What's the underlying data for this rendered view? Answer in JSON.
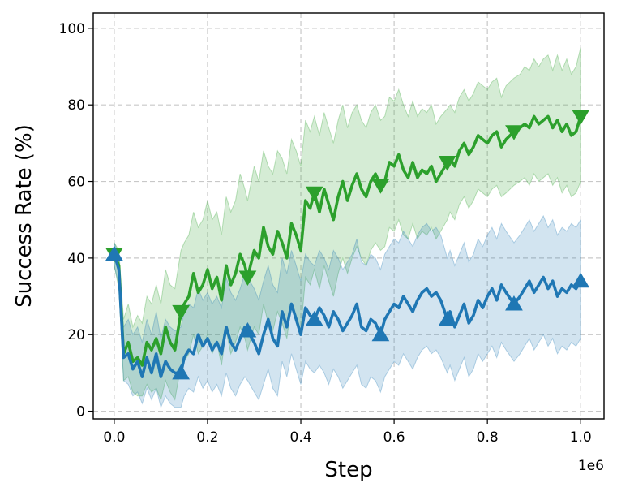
{
  "chart_data": {
    "type": "line",
    "title": "",
    "xlabel": "Step",
    "ylabel": "Success Rate (%)",
    "x_offset_label": "1e6",
    "xlim": [
      -0.045,
      1.05
    ],
    "ylim": [
      -2,
      104
    ],
    "grid": true,
    "legend": "none",
    "x_ticks": [
      0.0,
      0.2,
      0.4,
      0.6,
      0.8,
      1.0
    ],
    "x_tick_labels": [
      "0.0",
      "0.2",
      "0.4",
      "0.6",
      "0.8",
      "1.0"
    ],
    "y_ticks": [
      0,
      20,
      40,
      60,
      80,
      100
    ],
    "y_tick_labels": [
      "0",
      "20",
      "40",
      "60",
      "80",
      "100"
    ],
    "series": [
      {
        "color": "#2ca02c",
        "marker": "triangle-down",
        "markers_x": [
          0.0,
          0.143,
          0.286,
          0.429,
          0.571,
          0.714,
          0.857,
          1.0
        ],
        "x": [
          0.0,
          0.01,
          0.02,
          0.03,
          0.04,
          0.05,
          0.06,
          0.07,
          0.08,
          0.09,
          0.1,
          0.11,
          0.12,
          0.13,
          0.143,
          0.15,
          0.16,
          0.17,
          0.18,
          0.19,
          0.2,
          0.21,
          0.22,
          0.23,
          0.24,
          0.25,
          0.26,
          0.27,
          0.28,
          0.286,
          0.3,
          0.31,
          0.32,
          0.33,
          0.34,
          0.35,
          0.36,
          0.37,
          0.38,
          0.39,
          0.4,
          0.41,
          0.42,
          0.429,
          0.44,
          0.45,
          0.46,
          0.47,
          0.48,
          0.49,
          0.5,
          0.51,
          0.52,
          0.53,
          0.54,
          0.55,
          0.56,
          0.571,
          0.58,
          0.59,
          0.6,
          0.61,
          0.62,
          0.63,
          0.64,
          0.65,
          0.66,
          0.67,
          0.68,
          0.69,
          0.7,
          0.714,
          0.72,
          0.73,
          0.74,
          0.75,
          0.76,
          0.77,
          0.78,
          0.79,
          0.8,
          0.81,
          0.82,
          0.83,
          0.84,
          0.857,
          0.87,
          0.88,
          0.89,
          0.9,
          0.91,
          0.92,
          0.93,
          0.94,
          0.95,
          0.96,
          0.97,
          0.98,
          0.99,
          1.0
        ],
        "y": [
          41,
          38,
          15,
          18,
          13,
          14,
          12,
          18,
          16,
          19,
          15,
          22,
          18,
          16,
          26,
          28,
          30,
          36,
          31,
          33,
          37,
          32,
          35,
          29,
          38,
          33,
          36,
          41,
          38,
          35,
          42,
          40,
          48,
          43,
          41,
          47,
          44,
          40,
          49,
          46,
          42,
          55,
          53,
          57,
          52,
          58,
          54,
          50,
          56,
          60,
          55,
          59,
          62,
          58,
          56,
          60,
          62,
          59,
          60,
          65,
          64,
          67,
          63,
          61,
          65,
          61,
          63,
          62,
          64,
          60,
          62,
          65,
          66,
          64,
          68,
          70,
          67,
          69,
          72,
          71,
          70,
          72,
          73,
          69,
          71,
          73,
          74,
          75,
          74,
          77,
          75,
          76,
          77,
          74,
          76,
          73,
          75,
          72,
          73,
          77
        ],
        "upper": [
          44,
          42,
          24,
          28,
          22,
          25,
          23,
          30,
          28,
          33,
          28,
          37,
          33,
          32,
          42,
          44,
          46,
          52,
          48,
          50,
          55,
          50,
          52,
          46,
          56,
          52,
          55,
          62,
          58,
          55,
          64,
          60,
          68,
          64,
          62,
          68,
          66,
          62,
          71,
          68,
          64,
          76,
          73,
          77,
          72,
          78,
          74,
          70,
          76,
          80,
          74,
          78,
          80,
          76,
          74,
          78,
          80,
          76,
          77,
          82,
          81,
          84,
          80,
          77,
          81,
          77,
          79,
          78,
          80,
          75,
          77,
          79,
          80,
          78,
          82,
          84,
          81,
          83,
          86,
          85,
          84,
          86,
          87,
          82,
          85,
          87,
          88,
          90,
          89,
          92,
          90,
          92,
          93,
          89,
          93,
          89,
          92,
          88,
          90,
          95
        ],
        "lower": [
          38,
          32,
          8,
          9,
          5,
          4,
          4,
          7,
          5,
          6,
          3,
          8,
          5,
          3,
          12,
          13,
          15,
          20,
          15,
          17,
          20,
          15,
          18,
          12,
          21,
          15,
          18,
          22,
          19,
          16,
          22,
          20,
          28,
          23,
          21,
          26,
          23,
          19,
          28,
          25,
          21,
          35,
          33,
          37,
          32,
          38,
          34,
          30,
          36,
          40,
          36,
          40,
          43,
          40,
          38,
          42,
          44,
          42,
          43,
          48,
          47,
          50,
          46,
          45,
          49,
          45,
          47,
          46,
          48,
          45,
          47,
          50,
          52,
          50,
          54,
          56,
          53,
          55,
          58,
          57,
          56,
          58,
          59,
          56,
          57,
          59,
          60,
          61,
          59,
          62,
          60,
          61,
          62,
          59,
          61,
          57,
          59,
          56,
          57,
          60
        ]
      },
      {
        "color": "#1f77b4",
        "marker": "triangle-up",
        "markers_x": [
          0.0,
          0.143,
          0.286,
          0.429,
          0.571,
          0.714,
          0.857,
          1.0
        ],
        "x": [
          0.0,
          0.01,
          0.02,
          0.03,
          0.04,
          0.05,
          0.06,
          0.07,
          0.08,
          0.09,
          0.1,
          0.11,
          0.12,
          0.13,
          0.143,
          0.15,
          0.16,
          0.17,
          0.18,
          0.19,
          0.2,
          0.21,
          0.22,
          0.23,
          0.24,
          0.25,
          0.26,
          0.27,
          0.28,
          0.286,
          0.3,
          0.31,
          0.32,
          0.33,
          0.34,
          0.35,
          0.36,
          0.37,
          0.38,
          0.39,
          0.4,
          0.41,
          0.42,
          0.429,
          0.44,
          0.45,
          0.46,
          0.47,
          0.48,
          0.49,
          0.5,
          0.51,
          0.52,
          0.53,
          0.54,
          0.55,
          0.56,
          0.571,
          0.58,
          0.59,
          0.6,
          0.61,
          0.62,
          0.63,
          0.64,
          0.65,
          0.66,
          0.67,
          0.68,
          0.69,
          0.7,
          0.714,
          0.72,
          0.73,
          0.74,
          0.75,
          0.76,
          0.77,
          0.78,
          0.79,
          0.8,
          0.81,
          0.82,
          0.83,
          0.84,
          0.857,
          0.87,
          0.88,
          0.89,
          0.9,
          0.91,
          0.92,
          0.93,
          0.94,
          0.95,
          0.96,
          0.97,
          0.98,
          0.99,
          1.0
        ],
        "y": [
          41,
          37,
          14,
          15,
          11,
          13,
          9,
          14,
          10,
          15,
          9,
          13,
          11,
          10,
          10,
          14,
          16,
          15,
          20,
          17,
          19,
          16,
          18,
          15,
          22,
          18,
          16,
          19,
          22,
          21,
          18,
          15,
          20,
          24,
          19,
          17,
          26,
          22,
          28,
          24,
          20,
          27,
          25,
          24,
          27,
          25,
          22,
          26,
          24,
          21,
          23,
          25,
          28,
          22,
          21,
          24,
          23,
          20,
          24,
          26,
          28,
          27,
          30,
          28,
          26,
          29,
          31,
          32,
          30,
          31,
          29,
          24,
          26,
          22,
          25,
          28,
          23,
          25,
          29,
          27,
          30,
          32,
          29,
          33,
          31,
          28,
          30,
          32,
          34,
          31,
          33,
          35,
          32,
          34,
          30,
          32,
          31,
          33,
          32,
          34
        ],
        "upper": [
          44,
          41,
          22,
          24,
          20,
          22,
          18,
          24,
          20,
          26,
          19,
          24,
          22,
          21,
          22,
          26,
          28,
          27,
          32,
          29,
          31,
          28,
          30,
          27,
          35,
          31,
          29,
          32,
          36,
          35,
          32,
          29,
          34,
          38,
          33,
          31,
          40,
          36,
          42,
          38,
          34,
          41,
          39,
          38,
          42,
          40,
          37,
          42,
          40,
          37,
          39,
          41,
          45,
          39,
          38,
          41,
          40,
          37,
          41,
          43,
          45,
          44,
          47,
          45,
          43,
          46,
          48,
          49,
          47,
          48,
          46,
          40,
          42,
          38,
          41,
          44,
          39,
          41,
          45,
          43,
          46,
          48,
          45,
          49,
          47,
          44,
          46,
          48,
          50,
          47,
          49,
          51,
          48,
          50,
          46,
          48,
          47,
          49,
          48,
          50
        ],
        "lower": [
          38,
          33,
          8,
          7,
          4,
          5,
          2,
          6,
          3,
          6,
          1,
          4,
          2,
          1,
          1,
          4,
          6,
          5,
          9,
          6,
          8,
          5,
          7,
          4,
          10,
          6,
          4,
          7,
          9,
          8,
          5,
          3,
          7,
          11,
          6,
          4,
          13,
          9,
          15,
          11,
          7,
          13,
          11,
          10,
          12,
          10,
          7,
          11,
          9,
          6,
          8,
          10,
          12,
          7,
          6,
          9,
          8,
          5,
          9,
          11,
          13,
          12,
          15,
          13,
          11,
          14,
          16,
          17,
          15,
          16,
          14,
          10,
          12,
          8,
          11,
          14,
          9,
          11,
          15,
          13,
          15,
          17,
          14,
          18,
          16,
          13,
          15,
          17,
          19,
          16,
          18,
          20,
          17,
          19,
          15,
          17,
          16,
          18,
          17,
          19
        ]
      }
    ]
  }
}
